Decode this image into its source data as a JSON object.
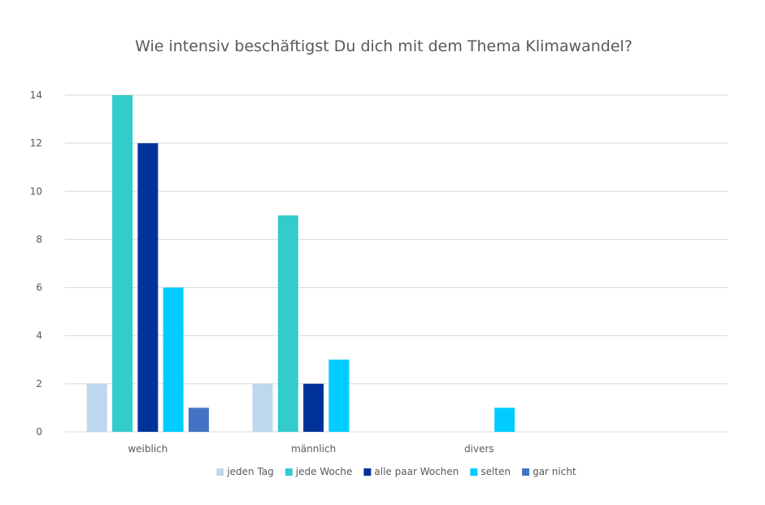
{
  "chart_data": {
    "type": "bar",
    "title": "Wie intensiv beschäftigst Du dich mit dem Thema Klimawandel?",
    "xlabel": "",
    "ylabel": "",
    "categories": [
      "weiblich",
      "männlich",
      "divers",
      ""
    ],
    "ylim": [
      0,
      14
    ],
    "yticks": [
      0,
      2,
      4,
      6,
      8,
      10,
      12,
      14
    ],
    "grid": true,
    "legend_position": "bottom",
    "series": [
      {
        "name": "jeden Tag",
        "color": "#bdd7ee",
        "values": [
          2,
          2,
          0,
          0
        ]
      },
      {
        "name": "jede Woche",
        "color": "#33cccc",
        "values": [
          14,
          9,
          0,
          0
        ]
      },
      {
        "name": "alle paar Wochen",
        "color": "#003399",
        "values": [
          12,
          2,
          0,
          0
        ]
      },
      {
        "name": "selten",
        "color": "#00ccff",
        "values": [
          6,
          3,
          1,
          0
        ]
      },
      {
        "name": "gar nicht",
        "color": "#4472c4",
        "values": [
          1,
          0,
          0,
          0
        ]
      }
    ]
  }
}
